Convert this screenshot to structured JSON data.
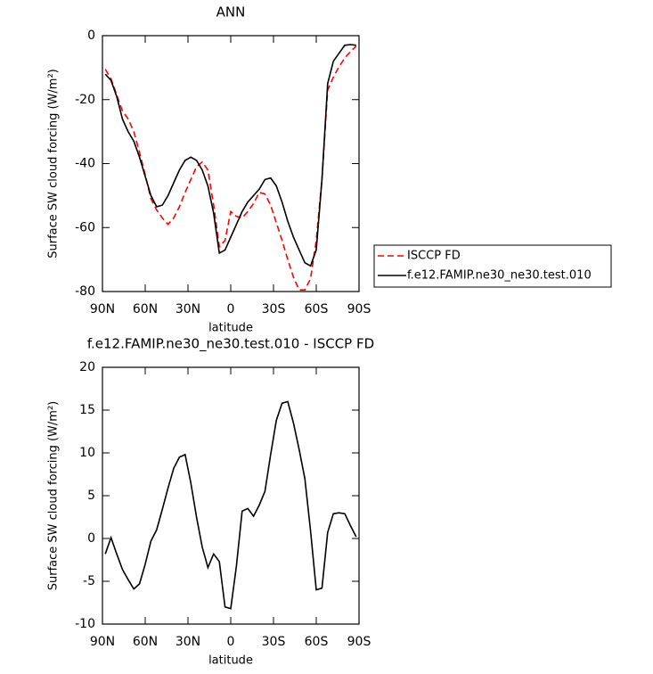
{
  "chart_data": [
    {
      "type": "line",
      "title": "ANN",
      "xlabel": "latitude",
      "ylabel": "Surface SW cloud forcing (W/m²)",
      "x": [
        88,
        84,
        80,
        76,
        72,
        68,
        64,
        60,
        56,
        52,
        48,
        44,
        40,
        36,
        32,
        28,
        24,
        20,
        16,
        12,
        8,
        4,
        0,
        -4,
        -8,
        -12,
        -16,
        -20,
        -24,
        -28,
        -32,
        -36,
        -40,
        -44,
        -48,
        -52,
        -56,
        -60,
        -64,
        -68,
        -72,
        -76,
        -80,
        -84,
        -88
      ],
      "series": [
        {
          "name": "ISCCP FD",
          "color": "#ff0000",
          "dash": true,
          "values": [
            -10.5,
            -13.5,
            -18.5,
            -23.5,
            -26,
            -30,
            -36.5,
            -43.5,
            -51,
            -54.5,
            -57,
            -59,
            -57,
            -53.5,
            -49,
            -45,
            -41,
            -39.5,
            -42,
            -53,
            -66,
            -64,
            -55,
            -56.5,
            -57,
            -55,
            -52.5,
            -49,
            -49.5,
            -53,
            -58.5,
            -64,
            -70,
            -75.5,
            -79.5,
            -79.5,
            -76,
            -64,
            -45,
            -17,
            -13,
            -9.7,
            -7,
            -5,
            -3.3
          ]
        },
        {
          "name": "f.e12.FAMIP.ne30_ne30.test.010",
          "color": "#000000",
          "dash": false,
          "values": [
            -12,
            -14,
            -19,
            -26,
            -30,
            -33,
            -38,
            -44,
            -50,
            -53.5,
            -53,
            -50,
            -46,
            -42,
            -39,
            -38,
            -39,
            -42,
            -47,
            -55.5,
            -68,
            -67,
            -63,
            -59,
            -55,
            -52,
            -50,
            -48,
            -45,
            -44.5,
            -47,
            -52,
            -58,
            -63,
            -67,
            -71,
            -72,
            -67,
            -45,
            -15,
            -8,
            -5.5,
            -3,
            -2.8,
            -3
          ]
        }
      ],
      "xlim": [
        90,
        -90
      ],
      "xticks": [
        {
          "value": 90,
          "label": "90N"
        },
        {
          "value": 60,
          "label": "60N"
        },
        {
          "value": 30,
          "label": "30N"
        },
        0,
        {
          "value": -30,
          "label": "30S"
        },
        {
          "value": -60,
          "label": "60S"
        },
        {
          "value": -90,
          "label": "90S"
        }
      ],
      "ylim": [
        -80,
        0
      ],
      "yticks": [
        0,
        -20,
        -40,
        -60,
        -80
      ],
      "legend": "outside-right"
    },
    {
      "type": "line",
      "title": "f.e12.FAMIP.ne30_ne30.test.010 - ISCCP FD",
      "xlabel": "latitude",
      "ylabel": "Surface SW cloud forcing (W/m²)",
      "x": [
        88,
        84,
        80,
        76,
        72,
        68,
        64,
        60,
        56,
        52,
        48,
        44,
        40,
        36,
        32,
        28,
        24,
        20,
        16,
        12,
        8,
        4,
        0,
        -4,
        -8,
        -12,
        -16,
        -20,
        -24,
        -28,
        -32,
        -36,
        -40,
        -44,
        -48,
        -52,
        -56,
        -60,
        -64,
        -68,
        -72,
        -76,
        -80,
        -84,
        -88
      ],
      "series": [
        {
          "color": "#000000",
          "dash": false,
          "values": [
            -1.8,
            0.1,
            -1.8,
            -3.6,
            -4.8,
            -5.9,
            -5.3,
            -3,
            -0.3,
            1,
            3.4,
            5.9,
            8.2,
            9.5,
            9.8,
            6.5,
            2.5,
            -1,
            -3.4,
            -1.8,
            -2.7,
            -8,
            -8.2,
            -3.2,
            3.2,
            3.5,
            2.6,
            3.9,
            5.5,
            9.8,
            13.8,
            15.8,
            16,
            13.5,
            10.4,
            7,
            0.9,
            -6,
            -5.8,
            0.7,
            2.9,
            3,
            2.9,
            1.5,
            0.2
          ]
        }
      ],
      "xlim": [
        90,
        -90
      ],
      "xticks": [
        {
          "value": 90,
          "label": "90N"
        },
        {
          "value": 60,
          "label": "60N"
        },
        {
          "value": 30,
          "label": "30N"
        },
        0,
        {
          "value": -30,
          "label": "30S"
        },
        {
          "value": -60,
          "label": "60S"
        },
        {
          "value": -90,
          "label": "90S"
        }
      ],
      "ylim": [
        -10,
        20
      ],
      "yticks": [
        -10,
        -5,
        0,
        5,
        10,
        15,
        20
      ]
    }
  ]
}
